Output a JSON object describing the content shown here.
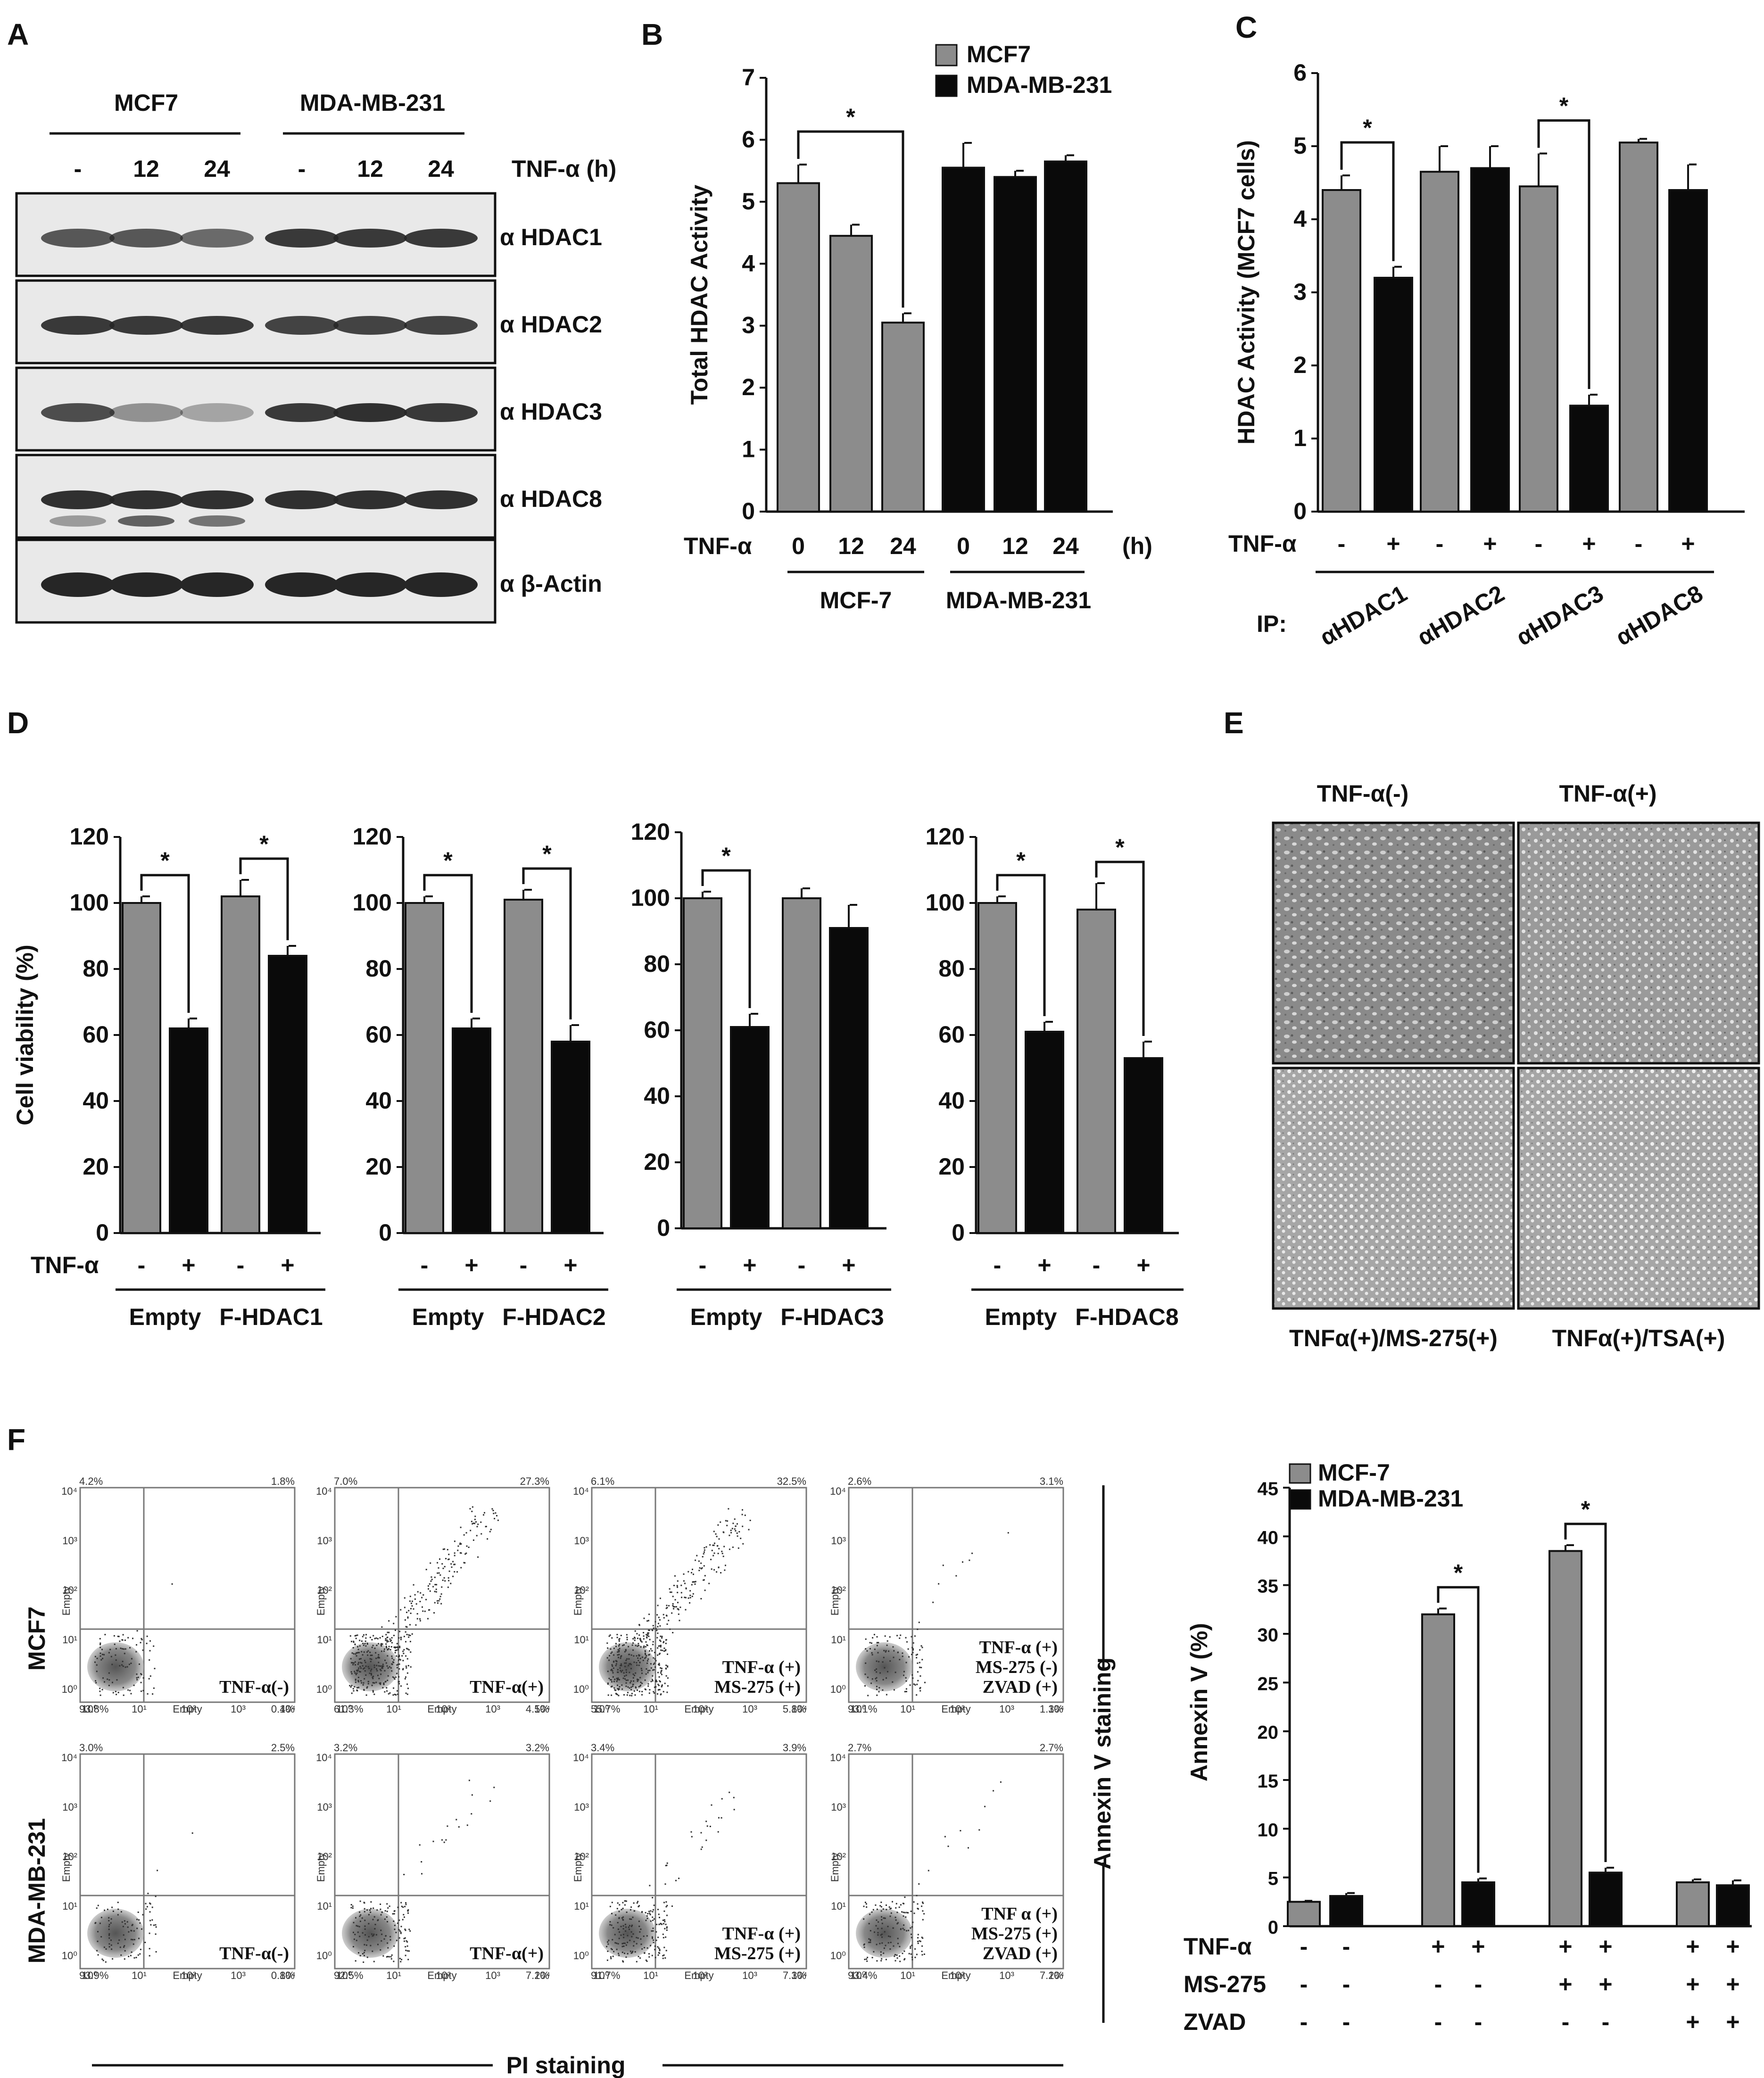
{
  "colors": {
    "gray_bar": "#8c8c8c",
    "black_bar": "#0a0a0a",
    "blot_bg": "#e9e9e9",
    "band": "#262626"
  },
  "panelA": {
    "letter": "A",
    "cells": [
      "MCF7",
      "MDA-MB-231"
    ],
    "times": [
      "-",
      "12",
      "24",
      "-",
      "12",
      "24"
    ],
    "treatment": "TNF-α (h)",
    "blots": [
      "α HDAC1",
      "α HDAC2",
      "α HDAC3",
      "α HDAC8",
      "α β-Actin"
    ]
  },
  "panelE": {
    "letter": "E",
    "top_labels": [
      "TNF-α(-)",
      "TNF-α(+)"
    ],
    "bottom_labels": [
      "TNFα(+)/MS-275(+)",
      "TNFα(+)/TSA(+)"
    ]
  },
  "panelF": {
    "letter": "F",
    "row_labels": [
      "MCF7",
      "MDA-MB-231"
    ],
    "plot_labels": [
      [
        "TNF-α(-)"
      ],
      [
        "TNF-α(+)"
      ],
      [
        "TNF-α (+)",
        "MS-275 (+)"
      ],
      [
        "TNF-α (+)",
        "MS-275 (-)",
        "ZVAD (+)"
      ],
      [
        "TNF-α(-)"
      ],
      [
        "TNF-α(+)"
      ],
      [
        "TNF-α (+)",
        "MS-275 (+)"
      ],
      [
        "TNF α (+)",
        "MS-275 (+)",
        "ZVAD (+)"
      ]
    ],
    "quadrant_pcts": [
      [
        "4.2%",
        "1.8%",
        "93.8%",
        "0.4%"
      ],
      [
        "7.0%",
        "27.3%",
        "61.3%",
        "4.5%"
      ],
      [
        "6.1%",
        "32.5%",
        "55.7%",
        "5.8%"
      ],
      [
        "2.6%",
        "3.1%",
        "93.1%",
        "1.3%"
      ],
      [
        "3.0%",
        "2.5%",
        "93.9%",
        "0.8%"
      ],
      [
        "3.2%",
        "3.2%",
        "92.5%",
        "7.2%"
      ],
      [
        "3.4%",
        "3.9%",
        "91.7%",
        "7.3%"
      ],
      [
        "2.7%",
        "2.7%",
        "93.4%",
        "7.2%"
      ]
    ],
    "axis_tick_labels": [
      "10⁰",
      "10¹",
      "10²",
      "10³",
      "10⁴"
    ],
    "axis_name": "Empty",
    "x_axis": "PI staining",
    "y_axis": "Annexin V staining"
  },
  "chart_data": [
    {
      "id": "B",
      "letter": "B",
      "type": "bar",
      "ylabel": "Total HDAC Activity",
      "ylim": [
        0,
        7
      ],
      "yticks": [
        0,
        1,
        2,
        3,
        4,
        5,
        6,
        7
      ],
      "legend": [
        "MCF7",
        "MDA-MB-231"
      ],
      "row_label": "TNF-α",
      "categories": [
        "0",
        "12",
        "24",
        "0",
        "12",
        "24"
      ],
      "unit_label": "(h)",
      "groups": [
        "MCF-7",
        "MDA-MB-231"
      ],
      "values": [
        5.3,
        4.45,
        3.05,
        5.55,
        5.4,
        5.65
      ],
      "errors": [
        0.3,
        0.18,
        0.15,
        0.4,
        0.1,
        0.1
      ],
      "color_series": [
        0,
        0,
        0,
        1,
        1,
        1
      ],
      "significance": [
        {
          "from": 0,
          "to": 2,
          "label": "*"
        }
      ]
    },
    {
      "id": "C",
      "letter": "C",
      "type": "bar",
      "ylabel": "HDAC Activity (MCF7 cells)",
      "ylim": [
        0,
        6
      ],
      "yticks": [
        0,
        1,
        2,
        3,
        4,
        5,
        6
      ],
      "row_label": "TNF-α",
      "categories": [
        "-",
        "+",
        "-",
        "+",
        "-",
        "+",
        "-",
        "+"
      ],
      "ip_label": "IP:",
      "groups": [
        "αHDAC1",
        "αHDAC2",
        "αHDAC3",
        "αHDAC8"
      ],
      "values": [
        4.4,
        3.2,
        4.65,
        4.7,
        4.45,
        1.45,
        5.05,
        4.4
      ],
      "errors": [
        0.2,
        0.15,
        0.35,
        0.3,
        0.45,
        0.15,
        0.05,
        0.35
      ],
      "color_series": [
        0,
        1,
        0,
        1,
        0,
        1,
        0,
        1
      ],
      "significance": [
        {
          "from": 0,
          "to": 1,
          "label": "*"
        },
        {
          "from": 4,
          "to": 5,
          "label": "*"
        }
      ]
    },
    {
      "id": "D1",
      "letter": "D",
      "type": "bar",
      "ylabel": "Cell viability (%)",
      "ylim": [
        0,
        120
      ],
      "yticks": [
        0,
        20,
        40,
        60,
        80,
        100,
        120
      ],
      "row_label": "TNF-α",
      "categories": [
        "-",
        "+",
        "-",
        "+"
      ],
      "groups": [
        "Empty",
        "F-HDAC1"
      ],
      "values": [
        100,
        62,
        102,
        84
      ],
      "errors": [
        2,
        3,
        5,
        3
      ],
      "color_series": [
        0,
        1,
        0,
        1
      ],
      "significance": [
        {
          "from": 0,
          "to": 1,
          "label": "*"
        },
        {
          "from": 2,
          "to": 3,
          "label": "*"
        }
      ]
    },
    {
      "id": "D2",
      "type": "bar",
      "ylim": [
        0,
        120
      ],
      "yticks": [
        0,
        20,
        40,
        60,
        80,
        100,
        120
      ],
      "categories": [
        "-",
        "+",
        "-",
        "+"
      ],
      "groups": [
        "Empty",
        "F-HDAC2"
      ],
      "values": [
        100,
        62,
        101,
        58
      ],
      "errors": [
        2,
        3,
        3,
        5
      ],
      "color_series": [
        0,
        1,
        0,
        1
      ],
      "significance": [
        {
          "from": 0,
          "to": 1,
          "label": "*"
        },
        {
          "from": 2,
          "to": 3,
          "label": "*"
        }
      ]
    },
    {
      "id": "D3",
      "type": "bar",
      "ylim": [
        0,
        120
      ],
      "yticks": [
        0,
        20,
        40,
        60,
        80,
        100,
        120
      ],
      "categories": [
        "-",
        "+",
        "-",
        "+"
      ],
      "groups": [
        "Empty",
        "F-HDAC3"
      ],
      "values": [
        100,
        61,
        100,
        91
      ],
      "errors": [
        2,
        4,
        3,
        7
      ],
      "color_series": [
        0,
        1,
        0,
        1
      ],
      "significance": [
        {
          "from": 0,
          "to": 1,
          "label": "*"
        }
      ]
    },
    {
      "id": "D4",
      "type": "bar",
      "ylim": [
        0,
        120
      ],
      "yticks": [
        0,
        20,
        40,
        60,
        80,
        100,
        120
      ],
      "categories": [
        "-",
        "+",
        "-",
        "+"
      ],
      "groups": [
        "Empty",
        "F-HDAC8"
      ],
      "values": [
        100,
        61,
        98,
        53
      ],
      "errors": [
        2,
        3,
        8,
        5
      ],
      "color_series": [
        0,
        1,
        0,
        1
      ],
      "significance": [
        {
          "from": 0,
          "to": 1,
          "label": "*"
        },
        {
          "from": 2,
          "to": 3,
          "label": "*"
        }
      ]
    },
    {
      "id": "F",
      "type": "bar",
      "ylabel": "Annexin V (%)",
      "ylim": [
        0,
        45
      ],
      "yticks": [
        0,
        5,
        10,
        15,
        20,
        25,
        30,
        35,
        40,
        45
      ],
      "legend": [
        "MCF-7",
        "MDA-MB-231"
      ],
      "conditions": [
        {
          "name": "TNF-α",
          "marks": [
            "-",
            "-",
            "+",
            "+",
            "+",
            "+",
            "+",
            "+"
          ]
        },
        {
          "name": "MS-275",
          "marks": [
            "-",
            "-",
            "-",
            "-",
            "+",
            "+",
            "+",
            "+"
          ]
        },
        {
          "name": "ZVAD",
          "marks": [
            "-",
            "-",
            "-",
            "-",
            "-",
            "-",
            "+",
            "+"
          ]
        }
      ],
      "values": [
        2.5,
        3.1,
        32,
        4.5,
        38.5,
        5.5,
        4.5,
        4.2
      ],
      "errors": [
        0.1,
        0.3,
        0.6,
        0.4,
        0.6,
        0.5,
        0.3,
        0.5
      ],
      "color_series": [
        0,
        1,
        0,
        1,
        0,
        1,
        0,
        1
      ],
      "significance": [
        {
          "from": 2,
          "to": 3,
          "label": "*"
        },
        {
          "from": 4,
          "to": 5,
          "label": "*"
        }
      ]
    }
  ]
}
